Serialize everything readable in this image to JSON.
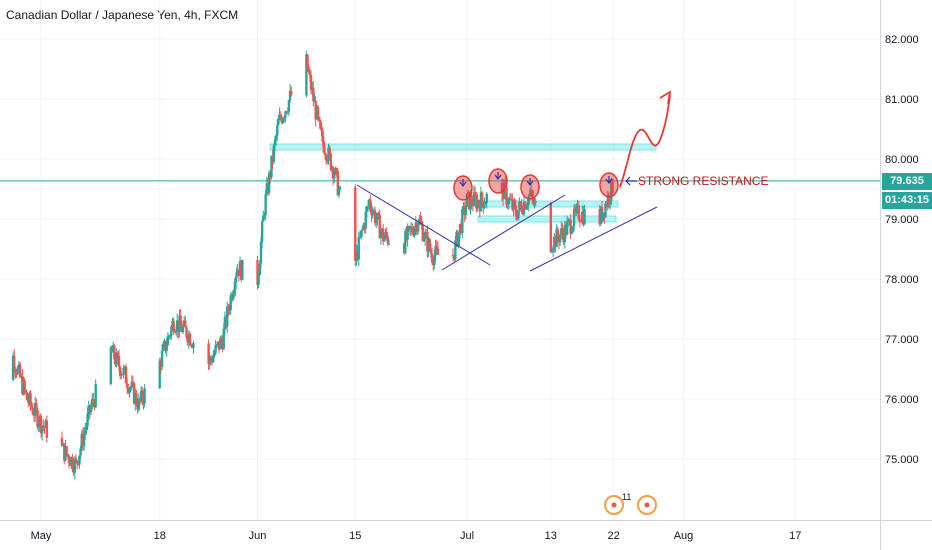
{
  "header": {
    "title": "Canadian Dollar / Japanese Yen, 4h, FXCM"
  },
  "price_axis": {
    "current_price": "79.635",
    "countdown": "01:43:15"
  },
  "annotation": {
    "text": "STRONG RESISTANCE"
  },
  "events": {
    "count_label": "11"
  },
  "colors": {
    "up": "#26a69a",
    "down": "#ef5350",
    "grid": "#f0f3fa",
    "axis_text": "#131722",
    "price_line": "#26a69a",
    "zone": "#7de8e6",
    "trend": "#3030b0",
    "resistance": "#e53935",
    "projection": "#e53935",
    "event": "#f0a040"
  },
  "chart_data": {
    "type": "candlestick",
    "title": "Canadian Dollar / Japanese Yen, 4h, FXCM",
    "symbol": "CAD/JPY",
    "interval": "4h",
    "ylim": [
      74.0,
      82.4
    ],
    "yticks": [
      "82.000",
      "81.000",
      "80.000",
      "79.000",
      "78.000",
      "77.000",
      "76.000",
      "75.000"
    ],
    "ytick_values": [
      82,
      81,
      80,
      79,
      78,
      77,
      76,
      75
    ],
    "xticks": [
      "May",
      "18",
      "Jun",
      "15",
      "Jul",
      "13",
      "22",
      "Aug",
      "17"
    ],
    "close_path_anchors": [
      [
        "Apr 24",
        76.3
      ],
      [
        "Apr 27",
        76.7
      ],
      [
        "Apr 29",
        76.0
      ],
      [
        "May 1",
        75.6
      ],
      [
        "May 3",
        75.3
      ],
      [
        "May 6",
        74.9
      ],
      [
        "May 8",
        75.8
      ],
      [
        "May 11",
        76.8
      ],
      [
        "May 13",
        76.4
      ],
      [
        "May 15",
        75.9
      ],
      [
        "May 18",
        76.6
      ],
      [
        "May 20",
        77.3
      ],
      [
        "May 22",
        77.1
      ],
      [
        "May 25",
        76.6
      ],
      [
        "May 27",
        77.0
      ],
      [
        "May 29",
        78.2
      ],
      [
        "Jun 1",
        78.0
      ],
      [
        "Jun 2",
        79.2
      ],
      [
        "Jun 4",
        80.6
      ],
      [
        "Jun 6",
        81.1
      ],
      [
        "Jun 8",
        81.6
      ],
      [
        "Jun 10",
        80.4
      ],
      [
        "Jun 12",
        79.8
      ],
      [
        "Jun 15",
        78.3
      ],
      [
        "Jun 17",
        79.3
      ],
      [
        "Jun 19",
        78.7
      ],
      [
        "Jun 22",
        78.6
      ],
      [
        "Jun 24",
        79.0
      ],
      [
        "Jun 26",
        78.4
      ],
      [
        "Jun 29",
        78.4
      ],
      [
        "Jul 1",
        79.3
      ],
      [
        "Jul 3",
        79.3
      ],
      [
        "Jul 6",
        79.5
      ],
      [
        "Jul 8",
        79.1
      ],
      [
        "Jul 10",
        79.4
      ],
      [
        "Jul 13",
        78.6
      ],
      [
        "Jul 15",
        78.8
      ],
      [
        "Jul 17",
        79.1
      ],
      [
        "Jul 20",
        79.0
      ],
      [
        "Jul 22",
        79.6
      ]
    ],
    "current_price": 79.635,
    "drawings": {
      "resistance_zone": [
        80.15,
        80.25
      ],
      "support_zones": [
        [
          79.2,
          79.3
        ],
        [
          78.95,
          79.05
        ]
      ],
      "price_line": 79.635
    },
    "annotation": "STRONG RESISTANCE",
    "grid": true
  }
}
